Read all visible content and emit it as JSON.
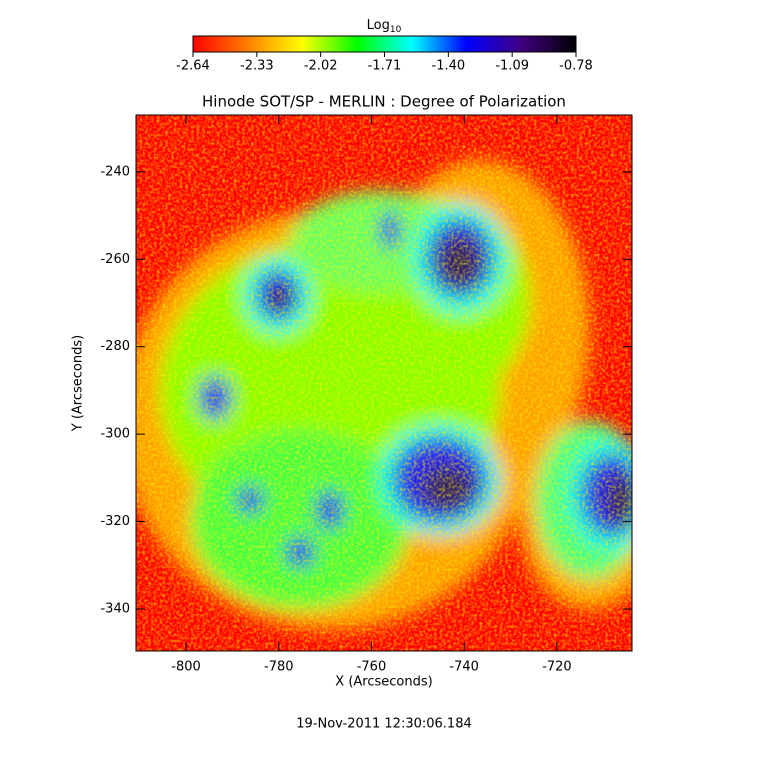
{
  "chart_data": {
    "type": "image",
    "title": "Hinode SOT/SP - MERLIN : Degree of Polarization",
    "x_label": "X (Arcseconds)",
    "y_label": "Y (Arcseconds)",
    "xlim": [
      -810.8,
      -703.8
    ],
    "xticks": [
      -800,
      -780,
      -760,
      -740,
      -720
    ],
    "ylim": [
      -349.6,
      -227.0
    ],
    "yticks": [
      -240,
      -260,
      -280,
      -300,
      -320,
      -340
    ],
    "colorbar_label": {
      "base": "Log",
      "sub": "10"
    },
    "clim": [
      -2.64,
      -0.78
    ],
    "cticks": [
      -2.64,
      -2.33,
      -2.02,
      -1.71,
      {
        "value": -1.4,
        "label": "-1.40"
      },
      -1.09,
      -0.78
    ],
    "colormap": [
      "#ff0000",
      "#ff8000",
      "#ffff00",
      "#00ff00",
      "#00ffff",
      "#0000ff",
      "#400080",
      "#000000"
    ],
    "timestamp": "19-Nov-2011 12:30:06.184"
  }
}
